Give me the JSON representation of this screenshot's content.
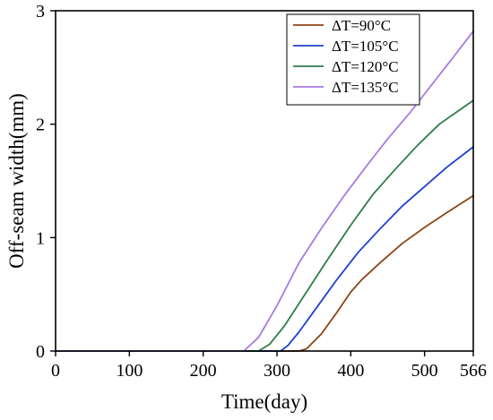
{
  "chart_data": {
    "type": "line",
    "title": "",
    "xlabel": "Time(day)",
    "ylabel": "Off-seam width(mm)",
    "xlim": [
      0,
      566
    ],
    "ylim": [
      0,
      3
    ],
    "xticks": [
      0,
      100,
      200,
      300,
      400,
      500,
      566
    ],
    "xtick_labels": [
      "0",
      "100",
      "200",
      "300",
      "400",
      "500",
      "566"
    ],
    "yticks": [
      0,
      1,
      2,
      3
    ],
    "ytick_labels": [
      "0",
      "1",
      "2",
      "3"
    ],
    "grid": false,
    "legend_position": "top-right",
    "series": [
      {
        "name": "ΔT=90°C",
        "color": "#8B4513",
        "x": [
          0,
          300,
          330,
          340,
          360,
          380,
          400,
          415,
          440,
          470,
          500,
          530,
          566
        ],
        "y": [
          0,
          0,
          0,
          0.02,
          0.15,
          0.33,
          0.52,
          0.63,
          0.78,
          0.95,
          1.09,
          1.22,
          1.37
        ]
      },
      {
        "name": "ΔT=105°C",
        "color": "#1E3FD0",
        "x": [
          0,
          300,
          305,
          315,
          330,
          350,
          380,
          410,
          440,
          470,
          500,
          530,
          566
        ],
        "y": [
          0,
          0,
          0,
          0.05,
          0.17,
          0.35,
          0.62,
          0.87,
          1.08,
          1.28,
          1.45,
          1.62,
          1.8
        ]
      },
      {
        "name": "ΔT=120°C",
        "color": "#2E7D4A",
        "x": [
          0,
          260,
          275,
          290,
          310,
          340,
          370,
          400,
          430,
          460,
          490,
          520,
          566
        ],
        "y": [
          0,
          0,
          0,
          0.06,
          0.22,
          0.52,
          0.82,
          1.11,
          1.38,
          1.6,
          1.81,
          2.0,
          2.21
        ]
      },
      {
        "name": "ΔT=135°C",
        "color": "#A87BE0",
        "x": [
          0,
          245,
          255,
          275,
          300,
          330,
          360,
          390,
          420,
          450,
          480,
          510,
          540,
          566
        ],
        "y": [
          0,
          0,
          0,
          0.12,
          0.4,
          0.78,
          1.08,
          1.36,
          1.62,
          1.87,
          2.1,
          2.35,
          2.6,
          2.82
        ]
      }
    ]
  }
}
